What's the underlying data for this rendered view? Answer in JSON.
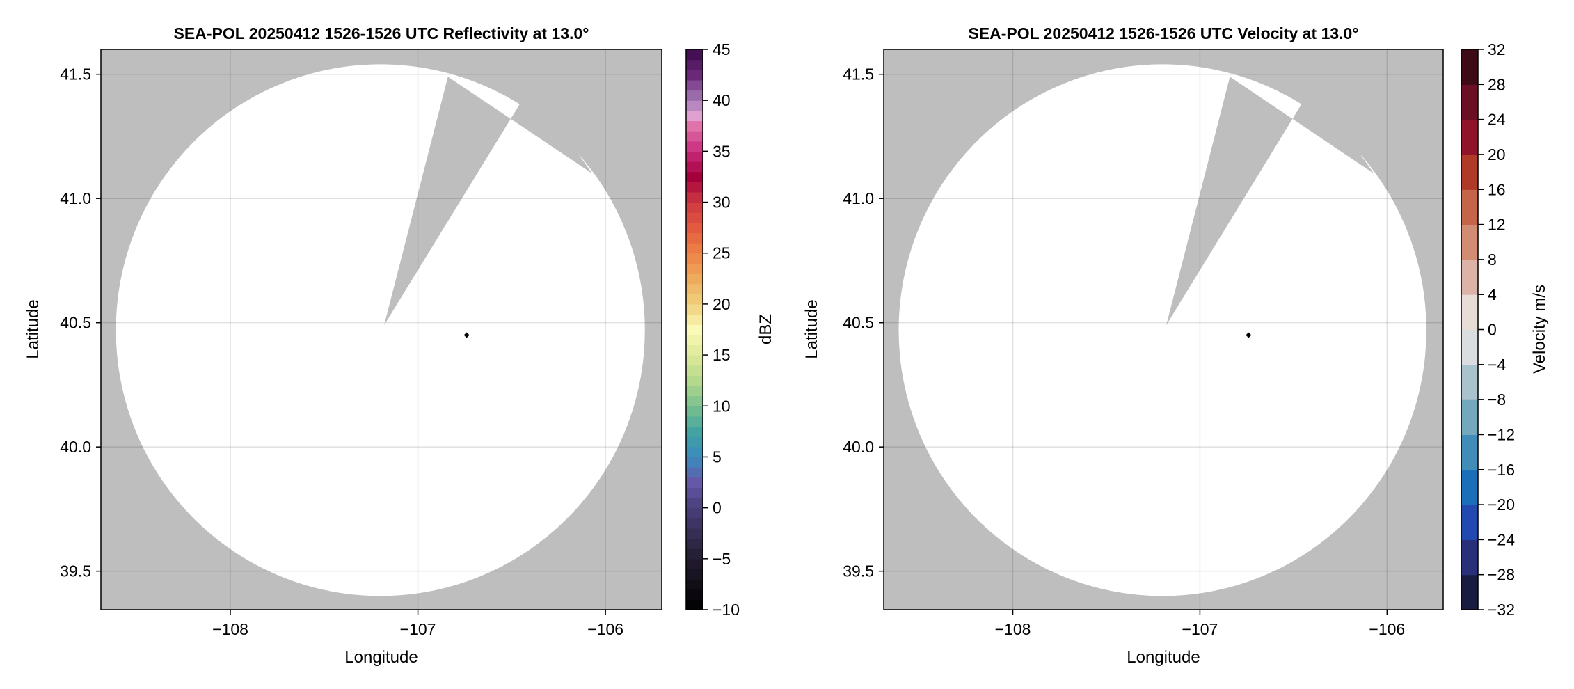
{
  "chart_data": [
    {
      "type": "heatmap",
      "title": "SEA-POL 20250412 1526-1526 UTC Reflectivity at 13.0°",
      "xlabel": "Longitude",
      "ylabel": "Latitude",
      "xlim": [
        -108.69,
        -105.7
      ],
      "ylim": [
        39.345,
        41.6
      ],
      "xticks": [
        -108,
        -107,
        -106
      ],
      "xtick_labels": [
        "−108",
        "−107",
        "−106"
      ],
      "yticks": [
        39.5,
        40.0,
        40.5,
        41.0,
        41.5
      ],
      "ytick_labels": [
        "39.5",
        "40.0",
        "40.5",
        "41.0",
        "41.5"
      ],
      "grid": true,
      "background_color": "#bebebe",
      "coverage_color": "#ffffff",
      "radar_center": [
        -107.2,
        40.47
      ],
      "radar_radius_deg": [
        1.41,
        1.07
      ],
      "blocked_wedge": [
        [
          -107.18,
          40.49
        ],
        [
          -106.84,
          41.49
        ],
        [
          -106.07,
          41.1
        ]
      ],
      "marker": {
        "lon": -106.74,
        "lat": 40.45,
        "color": "#000000"
      },
      "colorbar": {
        "label": "dBZ",
        "range": [
          -10,
          45
        ],
        "step": 1,
        "ticks": [
          -10,
          -5,
          0,
          5,
          10,
          15,
          20,
          25,
          30,
          35,
          40,
          45
        ],
        "tick_labels": [
          "−10",
          "−5",
          "0",
          "5",
          "10",
          "15",
          "20",
          "25",
          "30",
          "35",
          "40",
          "45"
        ],
        "color_stops": [
          [
            -10,
            "#000000"
          ],
          [
            -5,
            "#221c30"
          ],
          [
            0,
            "#4a3f7a"
          ],
          [
            2.5,
            "#6558a8"
          ],
          [
            5,
            "#3a8bbd"
          ],
          [
            7.5,
            "#42a3a0"
          ],
          [
            10,
            "#7cc08f"
          ],
          [
            12.5,
            "#b5d98c"
          ],
          [
            15,
            "#dde99a"
          ],
          [
            17.5,
            "#fbf9b8"
          ],
          [
            20,
            "#f0d07c"
          ],
          [
            22.5,
            "#efab5c"
          ],
          [
            25,
            "#ee8348"
          ],
          [
            27.5,
            "#e35a40"
          ],
          [
            30,
            "#ce3841"
          ],
          [
            32.5,
            "#a3003c"
          ],
          [
            35,
            "#c82a7a"
          ],
          [
            37.5,
            "#e173ab"
          ],
          [
            38.5,
            "#e0a0d0"
          ],
          [
            40,
            "#a67cb8"
          ],
          [
            42.5,
            "#6b2778"
          ],
          [
            45,
            "#3b0a4a"
          ]
        ]
      }
    },
    {
      "type": "heatmap",
      "title": "SEA-POL 20250412 1526-1526 UTC Velocity at 13.0°",
      "xlabel": "Longitude",
      "ylabel": "Latitude",
      "xlim": [
        -108.69,
        -105.7
      ],
      "ylim": [
        39.345,
        41.6
      ],
      "xticks": [
        -108,
        -107,
        -106
      ],
      "xtick_labels": [
        "−108",
        "−107",
        "−106"
      ],
      "yticks": [
        39.5,
        40.0,
        40.5,
        41.0,
        41.5
      ],
      "ytick_labels": [
        "39.5",
        "40.0",
        "40.5",
        "41.0",
        "41.5"
      ],
      "grid": true,
      "background_color": "#bebebe",
      "coverage_color": "#ffffff",
      "radar_center": [
        -107.2,
        40.47
      ],
      "radar_radius_deg": [
        1.41,
        1.07
      ],
      "blocked_wedge": [
        [
          -107.18,
          40.49
        ],
        [
          -106.84,
          41.49
        ],
        [
          -106.07,
          41.1
        ]
      ],
      "marker": {
        "lon": -106.74,
        "lat": 40.45,
        "color": "#000000"
      },
      "colorbar": {
        "label": "Velocity m/s",
        "range": [
          -32,
          32
        ],
        "step": 4,
        "ticks": [
          -32,
          -28,
          -24,
          -20,
          -16,
          -12,
          -8,
          -4,
          0,
          4,
          8,
          12,
          16,
          20,
          24,
          28,
          32
        ],
        "tick_labels": [
          "−32",
          "−28",
          "−24",
          "−20",
          "−16",
          "−12",
          "−8",
          "−4",
          "0",
          "4",
          "8",
          "12",
          "16",
          "20",
          "24",
          "28",
          "32"
        ],
        "band_colors": [
          "#1a1b40",
          "#28307a",
          "#2249b0",
          "#1a6fb8",
          "#428db8",
          "#74a8bc",
          "#a9c2cc",
          "#d9dde0",
          "#e8dcd9",
          "#deb3a7",
          "#d28c74",
          "#c46448",
          "#b03a28",
          "#8f1429",
          "#6b0f27",
          "#3d0a15"
        ]
      }
    }
  ]
}
